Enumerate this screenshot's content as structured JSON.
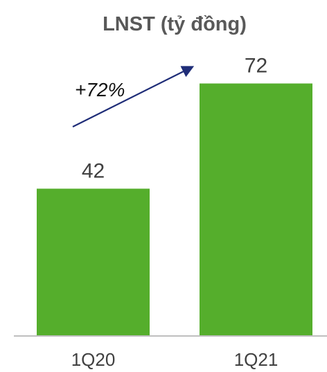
{
  "chart_data": {
    "type": "bar",
    "title": "LNST (tỷ đồng)",
    "categories": [
      "1Q20",
      "1Q21"
    ],
    "values": [
      42,
      72
    ],
    "data_labels": [
      "42",
      "72"
    ],
    "annotation": "+72%",
    "ylim": [
      0,
      80
    ],
    "grid": false,
    "colors": {
      "bar": "#55AE2C",
      "arrow": "#1F2D78",
      "axis": "#BFBFBF",
      "text": "#404040",
      "title": "#595959"
    }
  }
}
